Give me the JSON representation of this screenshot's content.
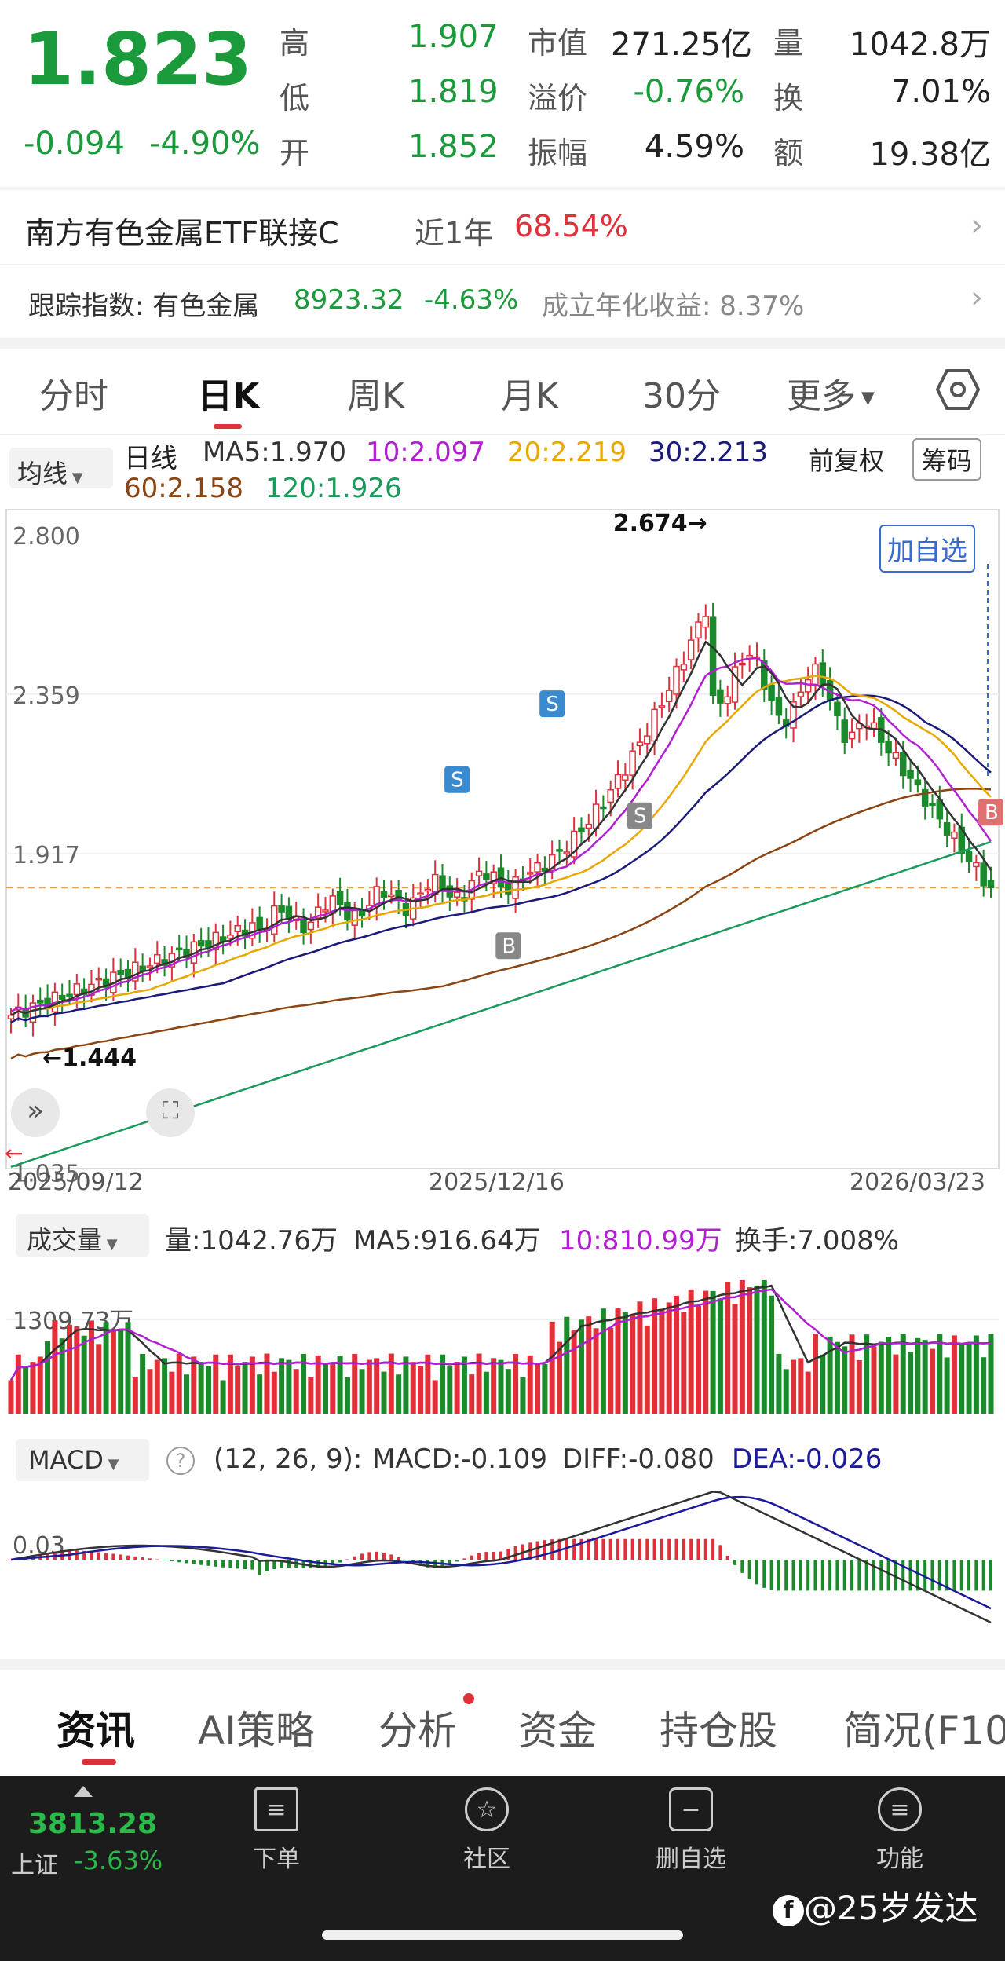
{
  "quote": {
    "price": "1.823",
    "change": "-0.094",
    "change_pct": "-4.90%",
    "stats": [
      {
        "label": "高",
        "value": "1.907",
        "cls": "green"
      },
      {
        "label": "低",
        "value": "1.819",
        "cls": "green"
      },
      {
        "label": "开",
        "value": "1.852",
        "cls": "green"
      },
      {
        "label": "市值",
        "value": "271.25亿",
        "cls": ""
      },
      {
        "label": "溢价",
        "value": "-0.76%",
        "cls": "green"
      },
      {
        "label": "振幅",
        "value": "4.59%",
        "cls": ""
      },
      {
        "label": "量",
        "value": "1042.8万",
        "cls": ""
      },
      {
        "label": "换",
        "value": "7.01%",
        "cls": ""
      },
      {
        "label": "额",
        "value": "19.38亿",
        "cls": ""
      }
    ]
  },
  "fund": {
    "name": "南方有色金属ETF联接C",
    "period_label": "近1年",
    "period_return": "68.54%"
  },
  "index": {
    "label": "跟踪指数: 有色金属",
    "value": "8923.32",
    "change": "-4.63%",
    "annual": "成立年化收益: 8.37%"
  },
  "period_tabs": [
    "分时",
    "日K",
    "周K",
    "月K",
    "30分",
    "更多"
  ],
  "ma_bar": {
    "selector": "均线",
    "type": "日线",
    "ma5": "MA5:1.970",
    "ma10": "10:2.097",
    "ma20": "20:2.219",
    "ma30": "30:2.213",
    "ma60": "60:2.158",
    "ma120": "120:1.926",
    "adjust": "前复权",
    "chips": "筹码"
  },
  "kline": {
    "y_labels": [
      "2.800",
      "2.359",
      "1.917",
      "1.035"
    ],
    "high_mark": "2.674",
    "low_mark": "1.444",
    "dates": [
      "2025/09/12",
      "2025/12/16",
      "2026/03/23"
    ],
    "add_watch": "加自选",
    "badges": [
      "S",
      "S",
      "S",
      "B",
      "B"
    ],
    "colors": {
      "ma5": "#333333",
      "ma10": "#b020d0",
      "ma20": "#e8a800",
      "ma30": "#1a1a7a",
      "ma60": "#8b4513",
      "ma120": "#1a9a5a",
      "up": "#e0303a",
      "down": "#1a8a2a"
    }
  },
  "volume": {
    "selector": "成交量",
    "vol": "量:1042.76万",
    "ma5": "MA5:916.64万",
    "ma10": "10:810.99万",
    "turnover": "换手:7.008%",
    "y_label": "1309.73万"
  },
  "macd": {
    "selector": "MACD",
    "params": "(12, 26, 9):",
    "macd": "MACD:-0.109",
    "diff": "DIFF:-0.080",
    "dea": "DEA:-0.026",
    "y_label": "0.03"
  },
  "info_tabs": [
    "资讯",
    "AI策略",
    "分析",
    "资金",
    "持仓股",
    "简况(F10"
  ],
  "bottom_nav": {
    "index_value": "3813.28",
    "index_name": "上证",
    "index_change": "-3.63%",
    "items": [
      "下单",
      "社区",
      "删自选",
      "功能"
    ]
  },
  "watermark": "@25岁发达"
}
